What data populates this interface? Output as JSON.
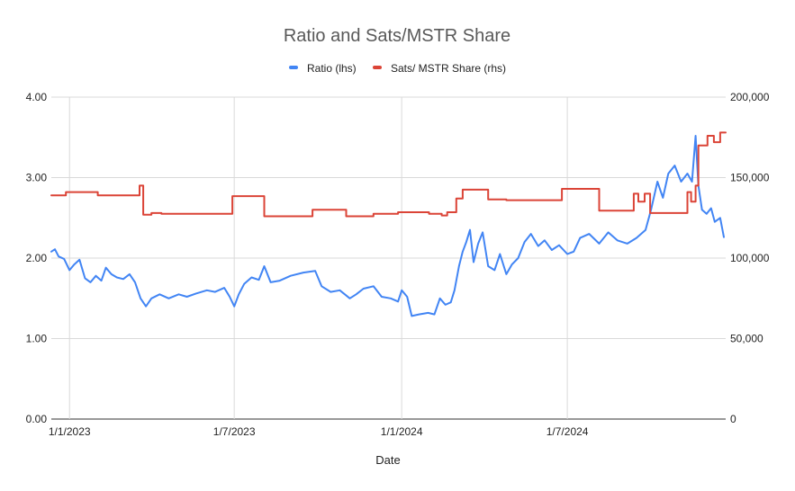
{
  "chart_data": {
    "type": "line",
    "title": "Ratio and Sats/MSTR Share",
    "xlabel": "Date",
    "ylabel_left": "",
    "ylabel_right": "",
    "x_range": [
      "2022-12-12",
      "2024-12-22"
    ],
    "x_tick_labels": [
      {
        "label": "1/1/2023",
        "date": "2023-01-01"
      },
      {
        "label": "1/7/2023",
        "date": "2023-07-01"
      },
      {
        "label": "1/1/2024",
        "date": "2024-01-01"
      },
      {
        "label": "1/7/2024",
        "date": "2024-07-01"
      }
    ],
    "ylim_left": [
      0,
      4
    ],
    "y_ticks_left": [
      "0.00",
      "1.00",
      "2.00",
      "3.00",
      "4.00"
    ],
    "ylim_right": [
      0,
      200000
    ],
    "y_ticks_right": [
      "0",
      "50,000",
      "100,000",
      "150,000",
      "200,000"
    ],
    "grid": true,
    "legend_position": "top",
    "series": [
      {
        "name": "Ratio (lhs)",
        "axis": "left",
        "color": "#4285f4",
        "step": false,
        "points": [
          [
            "2022-12-12",
            2.08
          ],
          [
            "2022-12-16",
            2.11
          ],
          [
            "2022-12-20",
            2.02
          ],
          [
            "2022-12-26",
            1.99
          ],
          [
            "2023-01-01",
            1.85
          ],
          [
            "2023-01-06",
            1.92
          ],
          [
            "2023-01-12",
            1.98
          ],
          [
            "2023-01-18",
            1.75
          ],
          [
            "2023-01-24",
            1.7
          ],
          [
            "2023-01-30",
            1.78
          ],
          [
            "2023-02-05",
            1.72
          ],
          [
            "2023-02-10",
            1.88
          ],
          [
            "2023-02-16",
            1.8
          ],
          [
            "2023-02-22",
            1.76
          ],
          [
            "2023-03-01",
            1.74
          ],
          [
            "2023-03-08",
            1.8
          ],
          [
            "2023-03-14",
            1.7
          ],
          [
            "2023-03-20",
            1.5
          ],
          [
            "2023-03-26",
            1.4
          ],
          [
            "2023-04-01",
            1.5
          ],
          [
            "2023-04-10",
            1.55
          ],
          [
            "2023-04-20",
            1.5
          ],
          [
            "2023-05-01",
            1.55
          ],
          [
            "2023-05-10",
            1.52
          ],
          [
            "2023-05-20",
            1.56
          ],
          [
            "2023-06-01",
            1.6
          ],
          [
            "2023-06-10",
            1.58
          ],
          [
            "2023-06-20",
            1.63
          ],
          [
            "2023-06-26",
            1.52
          ],
          [
            "2023-07-01",
            1.4
          ],
          [
            "2023-07-06",
            1.55
          ],
          [
            "2023-07-12",
            1.68
          ],
          [
            "2023-07-20",
            1.76
          ],
          [
            "2023-07-28",
            1.73
          ],
          [
            "2023-08-03",
            1.9
          ],
          [
            "2023-08-10",
            1.7
          ],
          [
            "2023-08-20",
            1.72
          ],
          [
            "2023-09-01",
            1.78
          ],
          [
            "2023-09-15",
            1.82
          ],
          [
            "2023-09-28",
            1.84
          ],
          [
            "2023-10-05",
            1.65
          ],
          [
            "2023-10-15",
            1.58
          ],
          [
            "2023-10-25",
            1.6
          ],
          [
            "2023-11-05",
            1.5
          ],
          [
            "2023-11-12",
            1.55
          ],
          [
            "2023-11-20",
            1.62
          ],
          [
            "2023-12-01",
            1.65
          ],
          [
            "2023-12-10",
            1.52
          ],
          [
            "2023-12-20",
            1.5
          ],
          [
            "2023-12-28",
            1.46
          ],
          [
            "2024-01-01",
            1.6
          ],
          [
            "2024-01-07",
            1.52
          ],
          [
            "2024-01-12",
            1.28
          ],
          [
            "2024-01-20",
            1.3
          ],
          [
            "2024-01-30",
            1.32
          ],
          [
            "2024-02-06",
            1.3
          ],
          [
            "2024-02-12",
            1.5
          ],
          [
            "2024-02-18",
            1.42
          ],
          [
            "2024-02-24",
            1.45
          ],
          [
            "2024-02-28",
            1.6
          ],
          [
            "2024-03-04",
            1.9
          ],
          [
            "2024-03-08",
            2.08
          ],
          [
            "2024-03-12",
            2.2
          ],
          [
            "2024-03-16",
            2.35
          ],
          [
            "2024-03-20",
            1.95
          ],
          [
            "2024-03-25",
            2.18
          ],
          [
            "2024-03-30",
            2.32
          ],
          [
            "2024-04-05",
            1.9
          ],
          [
            "2024-04-12",
            1.85
          ],
          [
            "2024-04-18",
            2.05
          ],
          [
            "2024-04-25",
            1.8
          ],
          [
            "2024-05-01",
            1.92
          ],
          [
            "2024-05-08",
            2.0
          ],
          [
            "2024-05-15",
            2.2
          ],
          [
            "2024-05-22",
            2.3
          ],
          [
            "2024-05-30",
            2.15
          ],
          [
            "2024-06-06",
            2.22
          ],
          [
            "2024-06-14",
            2.1
          ],
          [
            "2024-06-22",
            2.16
          ],
          [
            "2024-07-01",
            2.05
          ],
          [
            "2024-07-08",
            2.08
          ],
          [
            "2024-07-15",
            2.25
          ],
          [
            "2024-07-25",
            2.3
          ],
          [
            "2024-08-05",
            2.18
          ],
          [
            "2024-08-15",
            2.32
          ],
          [
            "2024-08-25",
            2.22
          ],
          [
            "2024-09-05",
            2.18
          ],
          [
            "2024-09-15",
            2.25
          ],
          [
            "2024-09-25",
            2.35
          ],
          [
            "2024-10-01",
            2.6
          ],
          [
            "2024-10-08",
            2.95
          ],
          [
            "2024-10-14",
            2.75
          ],
          [
            "2024-10-20",
            3.05
          ],
          [
            "2024-10-27",
            3.15
          ],
          [
            "2024-11-03",
            2.95
          ],
          [
            "2024-11-10",
            3.05
          ],
          [
            "2024-11-15",
            2.95
          ],
          [
            "2024-11-19",
            3.52
          ],
          [
            "2024-11-22",
            2.9
          ],
          [
            "2024-11-26",
            2.6
          ],
          [
            "2024-12-01",
            2.55
          ],
          [
            "2024-12-06",
            2.62
          ],
          [
            "2024-12-10",
            2.45
          ],
          [
            "2024-12-16",
            2.5
          ],
          [
            "2024-12-20",
            2.26
          ]
        ]
      },
      {
        "name": "Sats/ MSTR Share (rhs)",
        "axis": "right",
        "color": "#db4437",
        "step": true,
        "points": [
          [
            "2022-12-12",
            139000
          ],
          [
            "2022-12-28",
            141000
          ],
          [
            "2023-02-01",
            139000
          ],
          [
            "2023-03-19",
            145000
          ],
          [
            "2023-03-23",
            127000
          ],
          [
            "2023-04-01",
            128000
          ],
          [
            "2023-04-12",
            127500
          ],
          [
            "2023-06-29",
            138500
          ],
          [
            "2023-08-03",
            126000
          ],
          [
            "2023-09-25",
            130000
          ],
          [
            "2023-11-01",
            126000
          ],
          [
            "2023-12-01",
            127500
          ],
          [
            "2023-12-28",
            128500
          ],
          [
            "2024-01-31",
            127500
          ],
          [
            "2024-02-14",
            126500
          ],
          [
            "2024-02-20",
            128500
          ],
          [
            "2024-03-01",
            137000
          ],
          [
            "2024-03-08",
            142500
          ],
          [
            "2024-04-05",
            136500
          ],
          [
            "2024-04-25",
            136000
          ],
          [
            "2024-06-25",
            143000
          ],
          [
            "2024-08-05",
            129500
          ],
          [
            "2024-09-12",
            140000
          ],
          [
            "2024-09-17",
            135000
          ],
          [
            "2024-09-24",
            140000
          ],
          [
            "2024-09-30",
            128000
          ],
          [
            "2024-11-10",
            141000
          ],
          [
            "2024-11-14",
            135000
          ],
          [
            "2024-11-19",
            145000
          ],
          [
            "2024-11-22",
            170000
          ],
          [
            "2024-12-02",
            176000
          ],
          [
            "2024-12-09",
            172000
          ],
          [
            "2024-12-16",
            178000
          ],
          [
            "2024-12-22",
            178000
          ]
        ]
      }
    ]
  }
}
